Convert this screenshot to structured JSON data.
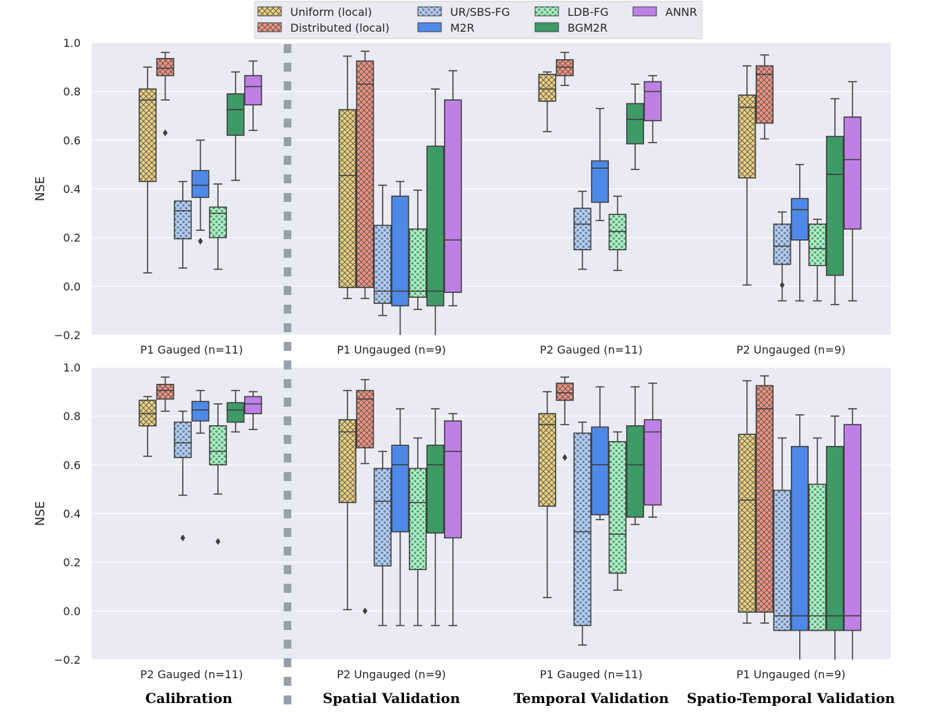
{
  "chart_data": {
    "type": "box",
    "ylabel": "NSE",
    "ylim": [
      -0.2,
      1.0
    ],
    "yticks": [
      -0.2,
      0.0,
      0.2,
      0.4,
      0.6,
      0.8,
      1.0
    ],
    "ytick_labels": [
      "−0.2",
      "0.0",
      "0.2",
      "0.4",
      "0.6",
      "0.8",
      "1.0"
    ],
    "stages": [
      "Calibration",
      "Spatial Validation",
      "Temporal Validation",
      "Spatio-Temporal Validation"
    ],
    "legend": [
      {
        "name": "Uniform (local)",
        "color": "#e8cf7e",
        "pattern": "cross"
      },
      {
        "name": "Distributed (local)",
        "color": "#ee9381",
        "pattern": "cross"
      },
      {
        "name": "UR/SBS-FG",
        "color": "#b3cff7",
        "pattern": "dots"
      },
      {
        "name": "M2R",
        "color": "#4e89e8",
        "pattern": "none"
      },
      {
        "name": "LDB-FG",
        "color": "#a6f5c4",
        "pattern": "dots"
      },
      {
        "name": "BGM2R",
        "color": "#3e9a66",
        "pattern": "none"
      },
      {
        "name": "ANNR",
        "color": "#be80e6",
        "pattern": "none"
      }
    ],
    "panels": [
      {
        "groups": [
          {
            "label": "P1 Gauged (n=11)",
            "boxes": [
              {
                "q1": 0.43,
                "median": 0.765,
                "q3": 0.81,
                "whislo": 0.055,
                "whishi": 0.9,
                "fliers": []
              },
              {
                "q1": 0.865,
                "median": 0.895,
                "q3": 0.935,
                "whislo": 0.765,
                "whishi": 0.96,
                "fliers": [
                  0.63
                ]
              },
              {
                "q1": 0.195,
                "median": 0.31,
                "q3": 0.35,
                "whislo": 0.075,
                "whishi": 0.43,
                "fliers": []
              },
              {
                "q1": 0.365,
                "median": 0.415,
                "q3": 0.475,
                "whislo": 0.23,
                "whishi": 0.6,
                "fliers": [
                  0.185
                ]
              },
              {
                "q1": 0.2,
                "median": 0.3,
                "q3": 0.325,
                "whislo": 0.07,
                "whishi": 0.42,
                "fliers": []
              },
              {
                "q1": 0.62,
                "median": 0.725,
                "q3": 0.79,
                "whislo": 0.435,
                "whishi": 0.88,
                "fliers": []
              },
              {
                "q1": 0.745,
                "median": 0.82,
                "q3": 0.865,
                "whislo": 0.64,
                "whishi": 0.925,
                "fliers": []
              }
            ]
          },
          {
            "label": "P1 Ungauged (n=9)",
            "boxes": [
              {
                "q1": -0.005,
                "median": 0.455,
                "q3": 0.725,
                "whislo": -0.05,
                "whishi": 0.945,
                "fliers": []
              },
              {
                "q1": -0.005,
                "median": 0.83,
                "q3": 0.925,
                "whislo": -0.05,
                "whishi": 0.965,
                "fliers": []
              },
              {
                "q1": -0.07,
                "median": -0.02,
                "q3": 0.25,
                "whislo": -0.12,
                "whishi": 0.415,
                "fliers": []
              },
              {
                "q1": -0.08,
                "median": -0.02,
                "q3": 0.37,
                "whislo": -0.25,
                "whishi": 0.43,
                "fliers": []
              },
              {
                "q1": -0.045,
                "median": -0.02,
                "q3": 0.235,
                "whislo": -0.095,
                "whishi": 0.395,
                "fliers": []
              },
              {
                "q1": -0.08,
                "median": -0.02,
                "q3": 0.575,
                "whislo": -0.25,
                "whishi": 0.81,
                "fliers": []
              },
              {
                "q1": -0.025,
                "median": 0.19,
                "q3": 0.765,
                "whislo": -0.08,
                "whishi": 0.885,
                "fliers": []
              }
            ]
          },
          {
            "label": "P2 Gauged (n=11)",
            "boxes": [
              {
                "q1": 0.76,
                "median": 0.81,
                "q3": 0.87,
                "whislo": 0.635,
                "whishi": 0.88,
                "fliers": []
              },
              {
                "q1": 0.865,
                "median": 0.9,
                "q3": 0.93,
                "whislo": 0.825,
                "whishi": 0.96,
                "fliers": []
              },
              {
                "q1": 0.15,
                "median": 0.255,
                "q3": 0.32,
                "whislo": 0.07,
                "whishi": 0.39,
                "fliers": []
              },
              {
                "q1": 0.345,
                "median": 0.485,
                "q3": 0.515,
                "whislo": 0.27,
                "whishi": 0.73,
                "fliers": []
              },
              {
                "q1": 0.15,
                "median": 0.225,
                "q3": 0.295,
                "whislo": 0.065,
                "whishi": 0.37,
                "fliers": []
              },
              {
                "q1": 0.585,
                "median": 0.685,
                "q3": 0.75,
                "whislo": 0.48,
                "whishi": 0.83,
                "fliers": []
              },
              {
                "q1": 0.68,
                "median": 0.8,
                "q3": 0.84,
                "whislo": 0.59,
                "whishi": 0.865,
                "fliers": []
              }
            ]
          },
          {
            "label": "P2 Ungauged (n=9)",
            "boxes": [
              {
                "q1": 0.445,
                "median": 0.735,
                "q3": 0.785,
                "whislo": 0.005,
                "whishi": 0.905,
                "fliers": []
              },
              {
                "q1": 0.67,
                "median": 0.87,
                "q3": 0.905,
                "whislo": 0.605,
                "whishi": 0.95,
                "fliers": []
              },
              {
                "q1": 0.09,
                "median": 0.165,
                "q3": 0.255,
                "whislo": -0.06,
                "whishi": 0.305,
                "fliers": [
                  0.005
                ]
              },
              {
                "q1": 0.19,
                "median": 0.315,
                "q3": 0.36,
                "whislo": -0.06,
                "whishi": 0.5,
                "fliers": []
              },
              {
                "q1": 0.085,
                "median": 0.155,
                "q3": 0.255,
                "whislo": -0.06,
                "whishi": 0.275,
                "fliers": []
              },
              {
                "q1": 0.045,
                "median": 0.46,
                "q3": 0.615,
                "whislo": -0.075,
                "whishi": 0.77,
                "fliers": []
              },
              {
                "q1": 0.235,
                "median": 0.52,
                "q3": 0.695,
                "whislo": -0.06,
                "whishi": 0.84,
                "fliers": []
              }
            ]
          }
        ]
      },
      {
        "groups": [
          {
            "label": "P2 Gauged (n=11)",
            "boxes": [
              {
                "q1": 0.76,
                "median": 0.81,
                "q3": 0.865,
                "whislo": 0.635,
                "whishi": 0.88,
                "fliers": []
              },
              {
                "q1": 0.87,
                "median": 0.905,
                "q3": 0.93,
                "whislo": 0.82,
                "whishi": 0.96,
                "fliers": []
              },
              {
                "q1": 0.63,
                "median": 0.69,
                "q3": 0.775,
                "whislo": 0.475,
                "whishi": 0.82,
                "fliers": [
                  0.3
                ]
              },
              {
                "q1": 0.78,
                "median": 0.825,
                "q3": 0.86,
                "whislo": 0.73,
                "whishi": 0.905,
                "fliers": []
              },
              {
                "q1": 0.6,
                "median": 0.655,
                "q3": 0.76,
                "whislo": 0.48,
                "whishi": 0.85,
                "fliers": [
                  0.285
                ]
              },
              {
                "q1": 0.775,
                "median": 0.825,
                "q3": 0.855,
                "whislo": 0.735,
                "whishi": 0.905,
                "fliers": []
              },
              {
                "q1": 0.81,
                "median": 0.85,
                "q3": 0.88,
                "whislo": 0.745,
                "whishi": 0.9,
                "fliers": []
              }
            ]
          },
          {
            "label": "P2 Ungauged (n=9)",
            "boxes": [
              {
                "q1": 0.445,
                "median": 0.735,
                "q3": 0.785,
                "whislo": 0.005,
                "whishi": 0.905,
                "fliers": []
              },
              {
                "q1": 0.67,
                "median": 0.87,
                "q3": 0.905,
                "whislo": 0.605,
                "whishi": 0.95,
                "fliers": [
                  0.0
                ]
              },
              {
                "q1": 0.185,
                "median": 0.45,
                "q3": 0.585,
                "whislo": -0.06,
                "whishi": 0.655,
                "fliers": []
              },
              {
                "q1": 0.325,
                "median": 0.6,
                "q3": 0.68,
                "whislo": -0.06,
                "whishi": 0.83,
                "fliers": []
              },
              {
                "q1": 0.17,
                "median": 0.445,
                "q3": 0.585,
                "whislo": -0.06,
                "whishi": 0.71,
                "fliers": []
              },
              {
                "q1": 0.32,
                "median": 0.6,
                "q3": 0.68,
                "whislo": -0.06,
                "whishi": 0.83,
                "fliers": []
              },
              {
                "q1": 0.3,
                "median": 0.655,
                "q3": 0.78,
                "whislo": -0.06,
                "whishi": 0.81,
                "fliers": []
              }
            ]
          },
          {
            "label": "P1 Gauged (n=11)",
            "boxes": [
              {
                "q1": 0.43,
                "median": 0.765,
                "q3": 0.81,
                "whislo": 0.055,
                "whishi": 0.9,
                "fliers": []
              },
              {
                "q1": 0.865,
                "median": 0.895,
                "q3": 0.935,
                "whislo": 0.765,
                "whishi": 0.96,
                "fliers": [
                  0.63
                ]
              },
              {
                "q1": -0.06,
                "median": 0.325,
                "q3": 0.73,
                "whislo": -0.14,
                "whishi": 0.775,
                "fliers": []
              },
              {
                "q1": 0.395,
                "median": 0.6,
                "q3": 0.755,
                "whislo": 0.375,
                "whishi": 0.92,
                "fliers": []
              },
              {
                "q1": 0.155,
                "median": 0.315,
                "q3": 0.695,
                "whislo": 0.085,
                "whishi": 0.735,
                "fliers": []
              },
              {
                "q1": 0.385,
                "median": 0.6,
                "q3": 0.76,
                "whislo": 0.355,
                "whishi": 0.92,
                "fliers": []
              },
              {
                "q1": 0.435,
                "median": 0.735,
                "q3": 0.785,
                "whislo": 0.385,
                "whishi": 0.935,
                "fliers": []
              }
            ]
          },
          {
            "label": "P1 Ungauged (n=9)",
            "boxes": [
              {
                "q1": -0.005,
                "median": 0.455,
                "q3": 0.725,
                "whislo": -0.05,
                "whishi": 0.945,
                "fliers": []
              },
              {
                "q1": -0.005,
                "median": 0.83,
                "q3": 0.925,
                "whislo": -0.05,
                "whishi": 0.965,
                "fliers": []
              },
              {
                "q1": -0.08,
                "median": -0.02,
                "q3": 0.495,
                "whislo": -0.08,
                "whishi": 0.71,
                "fliers": []
              },
              {
                "q1": -0.08,
                "median": -0.02,
                "q3": 0.675,
                "whislo": -0.25,
                "whishi": 0.805,
                "fliers": []
              },
              {
                "q1": -0.08,
                "median": -0.02,
                "q3": 0.52,
                "whislo": -0.08,
                "whishi": 0.71,
                "fliers": []
              },
              {
                "q1": -0.08,
                "median": -0.02,
                "q3": 0.675,
                "whislo": -0.25,
                "whishi": 0.8,
                "fliers": []
              },
              {
                "q1": -0.08,
                "median": -0.02,
                "q3": 0.765,
                "whislo": -0.25,
                "whishi": 0.83,
                "fliers": []
              }
            ]
          }
        ]
      }
    ]
  }
}
